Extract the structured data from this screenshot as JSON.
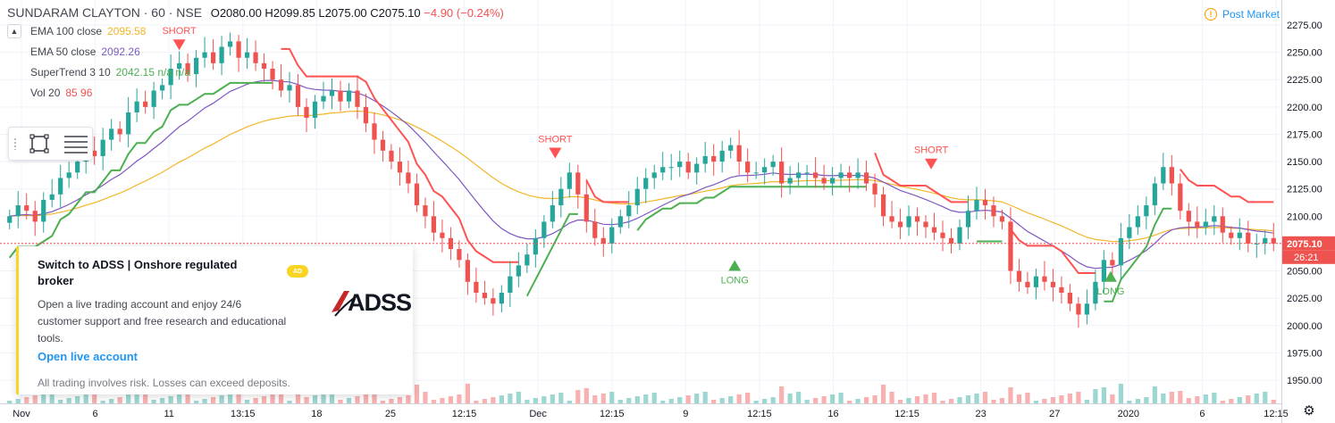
{
  "header": {
    "symbol": "SUNDARAM CLAYTON · 60 · NSE",
    "ohlc": "O2080.00 H2099.85 L2075.00 C2075.10",
    "change": "−4.90 (−0.24%)"
  },
  "indicators": [
    {
      "label": "EMA 100 close",
      "value": "2095.58",
      "color": "#f2b628"
    },
    {
      "label": "EMA 50 close",
      "value": "2092.26",
      "color": "#7e57c2"
    },
    {
      "label": "SuperTrend 3 10",
      "value": "2042.15 n/a n/a",
      "color": "#4caf50"
    },
    {
      "label": "Vol 20",
      "value": "85 96",
      "color": "#ef5350"
    }
  ],
  "status": {
    "icon": "alert-circle-icon",
    "label": "Post Market"
  },
  "ad": {
    "title": "Switch to ADSS | Onshore regulated broker",
    "badge": "AD",
    "body": "Open a live trading account and enjoy 24/6 customer support and free research and educational tools.",
    "cta": "Open live account",
    "disclaimer": "All trading involves risk. Losses can exceed deposits.",
    "logo_text": "ADSS"
  },
  "colors": {
    "up": "#26a69a",
    "down": "#ef5350",
    "st_up": "#4caf50",
    "st_down": "#ff5252",
    "ema100": "#f2b628",
    "ema50": "#7e57c2",
    "grid": "#f0f3fa",
    "axis_text": "#131722"
  },
  "chart_data": {
    "type": "candlestick",
    "ylim": [
      1935,
      2285
    ],
    "y_ticks": [
      "2275.00",
      "2250.00",
      "2225.00",
      "2200.00",
      "2175.00",
      "2150.00",
      "2125.00",
      "2100.00",
      "2075.00",
      "2050.00",
      "2025.00",
      "2000.00",
      "1975.00",
      "1950.00"
    ],
    "x_ticks": [
      "Nov",
      "6",
      "11",
      "13:15",
      "18",
      "25",
      "12:15",
      "Dec",
      "12:15",
      "9",
      "12:15",
      "16",
      "12:15",
      "23",
      "27",
      "2020",
      "6",
      "12:15"
    ],
    "price_label": "2075.10",
    "countdown_label": "26:21",
    "last_price": 2075.1,
    "signals": [
      {
        "label": "SHORT",
        "value": 2265
      },
      {
        "label": "LONG",
        "value": 2030
      },
      {
        "label": "SHORT",
        "value": 2166
      },
      {
        "label": "LONG",
        "value": 2050
      },
      {
        "label": "SHORT",
        "value": 2156
      },
      {
        "label": "LONG",
        "value": 2040
      }
    ],
    "close": [
      2100,
      2110,
      2105,
      2095,
      2115,
      2120,
      2135,
      2140,
      2150,
      2160,
      2155,
      2170,
      2180,
      2175,
      2195,
      2205,
      2200,
      2215,
      2220,
      2235,
      2240,
      2230,
      2245,
      2250,
      2240,
      2255,
      2260,
      2245,
      2250,
      2240,
      2235,
      2225,
      2215,
      2220,
      2200,
      2190,
      2205,
      2210,
      2215,
      2205,
      2215,
      2200,
      2185,
      2170,
      2160,
      2150,
      2140,
      2130,
      2110,
      2100,
      2085,
      2080,
      2070,
      2060,
      2040,
      2030,
      2025,
      2020,
      2030,
      2045,
      2055,
      2065,
      2080,
      2095,
      2110,
      2125,
      2140,
      2120,
      2095,
      2080,
      2075,
      2090,
      2100,
      2110,
      2125,
      2135,
      2140,
      2145,
      2145,
      2150,
      2140,
      2148,
      2155,
      2150,
      2160,
      2165,
      2150,
      2140,
      2140,
      2145,
      2150,
      2130,
      2135,
      2140,
      2140,
      2135,
      2130,
      2135,
      2140,
      2135,
      2140,
      2130,
      2120,
      2100,
      2095,
      2090,
      2100,
      2095,
      2090,
      2085,
      2080,
      2075,
      2090,
      2105,
      2115,
      2110,
      2100,
      2095,
      2050,
      2040,
      2035,
      2045,
      2040,
      2035,
      2030,
      2020,
      2010,
      2020,
      2040,
      2060,
      2055,
      2080,
      2090,
      2100,
      2110,
      2130,
      2145,
      2130,
      2105,
      2095,
      2090,
      2095,
      2100,
      2085,
      2080,
      2085,
      2075,
      2075,
      2080,
      2075
    ]
  }
}
